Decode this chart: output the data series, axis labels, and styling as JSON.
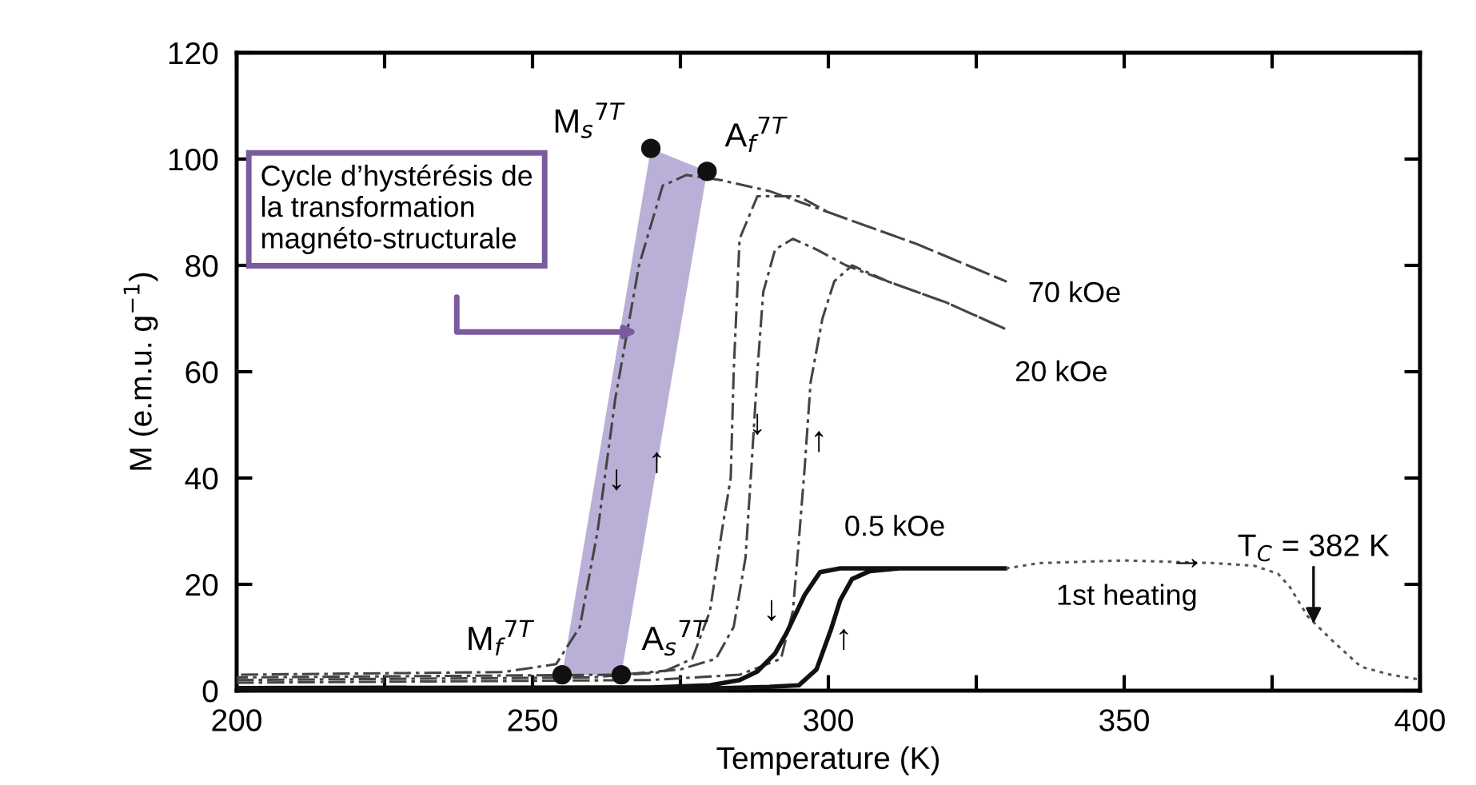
{
  "chart_data": {
    "type": "line",
    "xlabel": "Temperature (K)",
    "ylabel": "M (e.m.u. g$^{−1}$)",
    "xlim": [
      200,
      400
    ],
    "ylim": [
      0,
      120
    ],
    "xticks": [
      200,
      {
        "value": 225,
        "label": null
      },
      250,
      {
        "value": 275,
        "label": null
      },
      300,
      {
        "value": 325,
        "label": null
      },
      350,
      {
        "value": 375,
        "label": null
      },
      400
    ],
    "yticks": [
      0,
      20,
      40,
      60,
      80,
      100,
      120
    ],
    "grid": false,
    "legend": false,
    "series": [
      {
        "name": "70 kOe",
        "line_style": "dashed",
        "color": "#444444",
        "x": [
          200,
          260,
          272,
          277,
          280,
          282,
          283.5,
          284,
          285,
          288,
          295,
          300,
          315,
          330,
          315,
          300,
          290,
          282,
          276,
          272,
          268,
          264,
          261,
          258,
          254,
          245,
          200
        ],
        "values": [
          2,
          2.5,
          3.5,
          6,
          15,
          30,
          40,
          60,
          85,
          93,
          93,
          90,
          84,
          77,
          84,
          90,
          94,
          96,
          97,
          95,
          80,
          55,
          30,
          12,
          5,
          3.5,
          3
        ]
      },
      {
        "name": "20 kOe",
        "line_style": "dashed",
        "color": "#444444",
        "x": [
          200,
          270,
          285,
          292,
          294,
          295,
          296,
          297,
          299,
          301,
          304,
          310,
          320,
          330,
          320,
          310,
          303,
          298,
          294,
          291,
          289,
          288,
          287,
          286,
          284,
          281,
          275,
          265,
          200
        ],
        "values": [
          1.5,
          2,
          3,
          6,
          15,
          28,
          42,
          58,
          70,
          77,
          80,
          77,
          73,
          68,
          73,
          77,
          80,
          83,
          85,
          83,
          75,
          60,
          42,
          25,
          12,
          6,
          4,
          3,
          2.5
        ]
      },
      {
        "name": "0.5 kOe",
        "line_style": "solid",
        "color": "#111111",
        "x": [
          200,
          280,
          290,
          295,
          298,
          300.5,
          302,
          304,
          307,
          312,
          330,
          310,
          302,
          298.6,
          296,
          293,
          291,
          288,
          285,
          280,
          270,
          200
        ],
        "values": [
          0.3,
          0.4,
          0.7,
          1,
          4,
          11.7,
          17,
          21,
          22.5,
          23,
          23,
          23,
          23,
          22.3,
          18,
          11,
          7,
          3.6,
          2,
          1,
          0.6,
          0.5
        ]
      },
      {
        "name": "1st heating",
        "line_style": "dotted",
        "color": "#555555",
        "x": [
          330,
          335.7,
          350,
          365,
          372,
          376,
          378,
          381,
          385,
          390,
          395,
          400
        ],
        "values": [
          23,
          24,
          24.5,
          24,
          23.5,
          22,
          19.5,
          14,
          9.6,
          4.5,
          3,
          2.1
        ]
      },
      {
        "type": "scatter",
        "marker": "circle",
        "color": "#111111",
        "x": [
          255,
          270,
          279.5,
          265
        ],
        "values": [
          3,
          102,
          97.7,
          3
        ]
      }
    ],
    "annotations": [
      {
        "text": "M$_{s}$$^{7T}$",
        "x": 270,
        "y": 102
      },
      {
        "text": "A$_{f}$$^{7T}$",
        "x": 279.5,
        "y": 97.7
      },
      {
        "text": "M$_{f}$$^{7T}$",
        "x": 255,
        "y": 3
      },
      {
        "text": "A$_{s}$$^{7T}$",
        "x": 265,
        "y": 3
      },
      {
        "text": "T$_{C}$ = 382 K",
        "x": 382,
        "y": 12.6
      },
      "Cycle d’hystérésis de\nla transformation\nmagnéto-structurale",
      "→",
      "↓",
      "↑",
      "↓",
      "↑",
      "↓",
      "↑"
    ]
  }
}
